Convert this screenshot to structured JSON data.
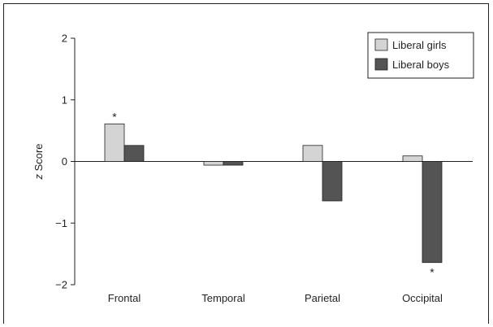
{
  "chart_data": {
    "type": "bar",
    "categories": [
      "Frontal",
      "Temporal",
      "Parietal",
      "Occipital"
    ],
    "series": [
      {
        "name": "Liberal girls",
        "values": [
          0.61,
          -0.06,
          0.26,
          0.09
        ],
        "color": "#d4d4d4"
      },
      {
        "name": "Liberal boys",
        "values": [
          0.26,
          -0.06,
          -0.64,
          -1.64
        ],
        "color": "#545454"
      }
    ],
    "ylabel_italic": "z",
    "ylabel_rest": " Score",
    "ylim": [
      -2,
      2
    ],
    "yticks": [
      -2,
      -1,
      0,
      1,
      2
    ],
    "ytick_labels": [
      "−2",
      "−1",
      "0",
      "1",
      "2"
    ],
    "legend_position": "top-right",
    "annotations": [
      {
        "text": "*",
        "category": "Frontal",
        "series": "Liberal girls",
        "anchor": "above"
      },
      {
        "text": "*",
        "category": "Occipital",
        "series": "Liberal boys",
        "anchor": "below"
      }
    ]
  }
}
